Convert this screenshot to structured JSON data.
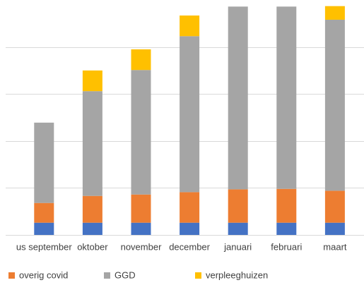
{
  "chart_data": {
    "type": "stacked_bar",
    "categories": [
      "us september",
      "oktober",
      "november",
      "december",
      "januari",
      "februari",
      "maart"
    ],
    "series": [
      {
        "color": "#4472c4",
        "values": [
          0.26,
          0.26,
          0.26,
          0.26,
          0.26,
          0.26,
          0.26
        ]
      },
      {
        "name": "overig covid",
        "color": "#ed7d31",
        "values": [
          0.42,
          0.57,
          0.6,
          0.65,
          0.71,
          0.72,
          0.68
        ]
      },
      {
        "name": "GGD",
        "color": "#a5a5a5",
        "values": [
          1.71,
          2.23,
          2.65,
          3.32,
          3.89,
          3.88,
          3.64
        ]
      },
      {
        "name": "verpleeghuizen",
        "color": "#ffc000",
        "values": [
          0,
          0.44,
          0.44,
          0.44,
          0,
          0,
          0.29
        ]
      }
    ],
    "ylim": [
      0,
      5
    ],
    "yticks": [
      0,
      1,
      2,
      3,
      4
    ],
    "grid": true
  }
}
